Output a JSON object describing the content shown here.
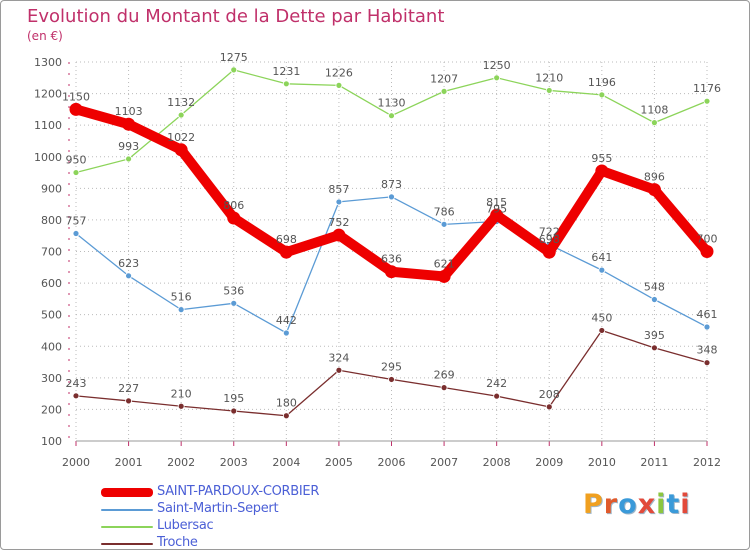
{
  "title": "Evolution du Montant de la Dette par Habitant",
  "subtitle": "(en €)",
  "logo_text": "Proxiti",
  "colors": {
    "title": "#c0306a",
    "axis_text": "#555555",
    "grid": "#bbbbbb",
    "legend_text": "#4b5fd6",
    "logo_letters": [
      "#f0a020",
      "#e05a2b",
      "#3a9ad9",
      "#e24a3b",
      "#8cc63f",
      "#3a9ad9",
      "#e24a3b"
    ]
  },
  "chart_data": {
    "type": "line",
    "x": [
      "2000",
      "2001",
      "2002",
      "2003",
      "2004",
      "2005",
      "2006",
      "2007",
      "2008",
      "2009",
      "2010",
      "2011",
      "2012"
    ],
    "yticks": [
      100,
      200,
      300,
      400,
      500,
      600,
      700,
      800,
      900,
      1000,
      1100,
      1200,
      1300
    ],
    "ylim": [
      100,
      1300
    ],
    "grid": true,
    "legend_position": "bottom-left",
    "series": [
      {
        "name": "SAINT-PARDOUX-CORBIER",
        "color": "#ee0000",
        "emphasis": true,
        "values": [
          1150,
          1103,
          1022,
          806,
          698,
          752,
          636,
          621,
          815,
          698,
          955,
          896,
          700
        ],
        "labels": [
          "1150",
          "1103",
          "1022",
          "806",
          "698",
          "752",
          "636",
          "621",
          "815",
          "698",
          "955",
          "896",
          "700"
        ]
      },
      {
        "name": "Saint-Martin-Sepert",
        "color": "#5b9bd5",
        "emphasis": false,
        "values": [
          757,
          623,
          516,
          536,
          442,
          857,
          873,
          786,
          795,
          722,
          641,
          548,
          461
        ],
        "labels": [
          "757",
          "623",
          "516",
          "536",
          "442",
          "857",
          "873",
          "786",
          "795",
          "722",
          "641",
          "548",
          "461"
        ]
      },
      {
        "name": "Lubersac",
        "color": "#8cd45a",
        "emphasis": false,
        "values": [
          950,
          993,
          1132,
          1275,
          1231,
          1226,
          1130,
          1207,
          1250,
          1210,
          1196,
          1108,
          1176
        ],
        "labels": [
          "950",
          "993",
          "1132",
          "1275",
          "1231",
          "1226",
          "1130",
          "1207",
          "1250",
          "1210",
          "1196",
          "1108",
          "1176"
        ]
      },
      {
        "name": "Troche",
        "color": "#7a2e2e",
        "emphasis": false,
        "values": [
          243,
          227,
          210,
          195,
          180,
          324,
          295,
          269,
          242,
          208,
          450,
          395,
          348
        ],
        "labels": [
          "243",
          "227",
          "210",
          "195",
          "180",
          "324",
          "295",
          "269",
          "242",
          "208",
          "450",
          "395",
          "348"
        ]
      }
    ]
  }
}
